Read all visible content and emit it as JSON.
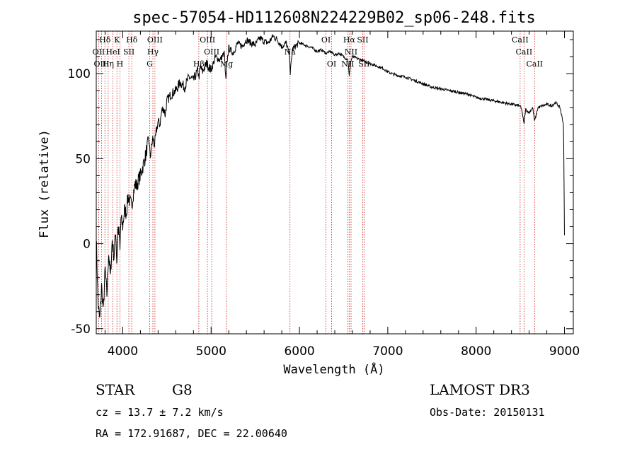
{
  "chart_data": {
    "type": "line",
    "title": "spec-57054-HD112608N224229B02_sp06-248.fits",
    "xlabel": "Wavelength (Å)",
    "ylabel": "Flux (relative)",
    "xlim": [
      3700,
      9100
    ],
    "ylim": [
      -53,
      125
    ],
    "xticks": [
      4000,
      5000,
      6000,
      7000,
      8000,
      9000
    ],
    "yticks": [
      -50,
      0,
      50,
      100
    ],
    "series": [
      {
        "name": "spectrum",
        "x": [
          3700,
          3720,
          3740,
          3760,
          3780,
          3800,
          3820,
          3840,
          3860,
          3880,
          3900,
          3920,
          3933,
          3945,
          3960,
          3968,
          3980,
          4000,
          4020,
          4040,
          4060,
          4080,
          4101,
          4120,
          4140,
          4160,
          4180,
          4200,
          4220,
          4240,
          4260,
          4280,
          4300,
          4310,
          4320,
          4340,
          4360,
          4380,
          4400,
          4420,
          4440,
          4460,
          4480,
          4500,
          4550,
          4600,
          4650,
          4700,
          4750,
          4800,
          4850,
          4861,
          4880,
          4900,
          4950,
          5000,
          5050,
          5100,
          5150,
          5167,
          5173,
          5183,
          5200,
          5250,
          5300,
          5350,
          5400,
          5450,
          5500,
          5550,
          5600,
          5650,
          5700,
          5750,
          5800,
          5850,
          5890,
          5896,
          5920,
          5950,
          6000,
          6050,
          6100,
          6150,
          6200,
          6250,
          6300,
          6350,
          6400,
          6450,
          6500,
          6550,
          6563,
          6580,
          6600,
          6650,
          6700,
          6750,
          6800,
          6850,
          6900,
          6950,
          7000,
          7100,
          7200,
          7300,
          7400,
          7500,
          7600,
          7700,
          7800,
          7900,
          8000,
          8100,
          8200,
          8300,
          8400,
          8498,
          8520,
          8542,
          8560,
          8600,
          8640,
          8662,
          8700,
          8750,
          8800,
          8850,
          8900,
          8950,
          8990,
          9000
        ],
        "values": [
          5,
          -35,
          -45,
          -25,
          -40,
          -15,
          -30,
          -5,
          -20,
          2,
          -8,
          8,
          -12,
          10,
          5,
          -5,
          15,
          10,
          20,
          18,
          28,
          25,
          22,
          30,
          35,
          34,
          38,
          40,
          44,
          48,
          52,
          58,
          60,
          50,
          55,
          62,
          58,
          66,
          72,
          70,
          78,
          80,
          76,
          84,
          88,
          90,
          95,
          92,
          98,
          96,
          102,
          98,
          104,
          101,
          106,
          102,
          110,
          108,
          112,
          95,
          100,
          108,
          115,
          112,
          118,
          116,
          120,
          118,
          117,
          121,
          119,
          118,
          122,
          120,
          116,
          118,
          110,
          100,
          114,
          116,
          118,
          117,
          116,
          115,
          113,
          114,
          112,
          113,
          111,
          112,
          110,
          108,
          98,
          107,
          110,
          109,
          108,
          107,
          106,
          105,
          104,
          103,
          101,
          99,
          98,
          96,
          94,
          92,
          91,
          90,
          89,
          88,
          86,
          85,
          84,
          83,
          82,
          81,
          78,
          70,
          79,
          77,
          80,
          72,
          80,
          81,
          82,
          81,
          83,
          80,
          70,
          5
        ]
      }
    ],
    "lines": [
      {
        "name": "Hδ",
        "wave": 3798,
        "row": 1
      },
      {
        "name": "OII",
        "wave": 3727,
        "row": 2
      },
      {
        "name": "OIII",
        "wave": 3760,
        "row": 3
      },
      {
        "name": "K",
        "wave": 3934,
        "row": 1
      },
      {
        "name": "HeI",
        "wave": 3889,
        "row": 2
      },
      {
        "name": "Hη",
        "wave": 3835,
        "row": 3
      },
      {
        "name": "SII",
        "wave": 4069,
        "row": 2
      },
      {
        "name": "H",
        "wave": 3968,
        "row": 3
      },
      {
        "name": "Hδ",
        "wave": 4102,
        "row": 1
      },
      {
        "name": "OIII",
        "wave": 4364,
        "row": 1
      },
      {
        "name": "Hγ",
        "wave": 4341,
        "row": 2
      },
      {
        "name": "G",
        "wave": 4305,
        "row": 3
      },
      {
        "name": "OIII",
        "wave": 4959,
        "row": 1
      },
      {
        "name": "OIII",
        "wave": 5007,
        "row": 2
      },
      {
        "name": "Hβ",
        "wave": 4861,
        "row": 3
      },
      {
        "name": "Mg",
        "wave": 5175,
        "row": 3
      },
      {
        "name": "Na",
        "wave": 5893,
        "row": 2
      },
      {
        "name": "OI",
        "wave": 6300,
        "row": 1
      },
      {
        "name": "OI",
        "wave": 6364,
        "row": 3
      },
      {
        "name": "Hα",
        "wave": 6563,
        "row": 1
      },
      {
        "name": "NII",
        "wave": 6548,
        "row": 3
      },
      {
        "name": "SII",
        "wave": 6716,
        "row": 1
      },
      {
        "name": "NII",
        "wave": 6584,
        "row": 2
      },
      {
        "name": "SII",
        "wave": 6731,
        "row": 3
      },
      {
        "name": "CaII",
        "wave": 8498,
        "row": 1
      },
      {
        "name": "CaII",
        "wave": 8542,
        "row": 2
      },
      {
        "name": "CaII",
        "wave": 8662,
        "row": 3
      }
    ]
  },
  "info": {
    "object_class": "STAR",
    "subclass": "G8",
    "survey": "LAMOST DR3",
    "redshift": "cz = 13.7 ± 7.2 km/s",
    "obs_date": "Obs-Date: 20150131",
    "coords": "RA = 172.91687, DEC =  22.00640"
  }
}
